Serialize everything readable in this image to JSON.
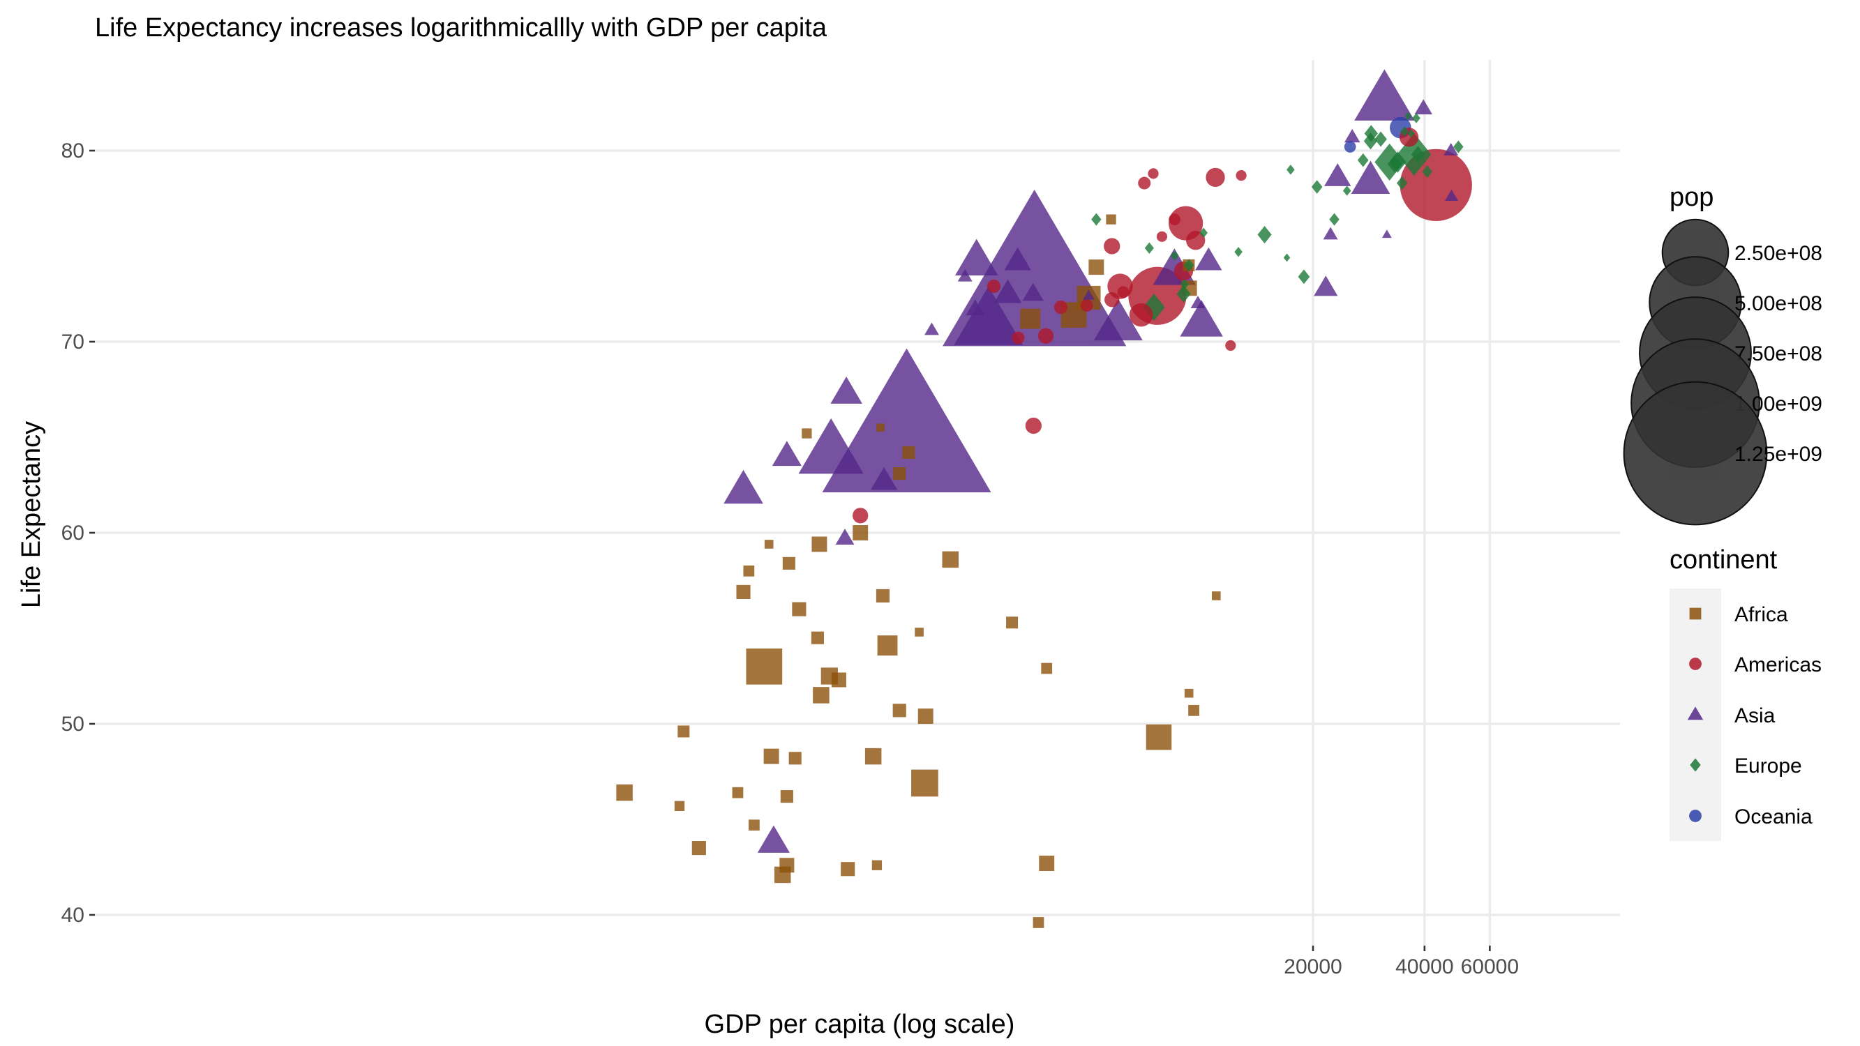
{
  "chart_data": {
    "type": "scatter",
    "title": "Life Expectancy increases logarithmicallly with GDP per capita",
    "xlabel": "GDP per capita (log scale)",
    "ylabel": "Life Expectancy",
    "x_scale": "log10",
    "x_ticks": [
      20000,
      40000,
      60000
    ],
    "x_tick_labels": [
      "20000",
      "40000",
      "60000"
    ],
    "y_ticks": [
      40,
      50,
      60,
      70,
      80
    ],
    "y_tick_labels": [
      "40",
      "50",
      "60",
      "70",
      "80"
    ],
    "xlim": [
      250,
      60000
    ],
    "ylim": [
      37.5,
      85
    ],
    "grid": true,
    "legends": {
      "pop": {
        "title": "pop",
        "values": [
          250000000,
          500000000,
          750000000,
          1000000000,
          1250000000
        ],
        "labels": [
          "2.50e+08",
          "5.00e+08",
          "7.50e+08",
          "1.00e+09",
          "1.25e+09"
        ]
      },
      "continent": {
        "title": "continent",
        "items": [
          {
            "name": "Africa",
            "color": "#8c510a",
            "shape": "square"
          },
          {
            "name": "Americas",
            "color": "#b2182b",
            "shape": "circle"
          },
          {
            "name": "Asia",
            "color": "#542788",
            "shape": "triangle"
          },
          {
            "name": "Europe",
            "color": "#1b7837",
            "shape": "diamond"
          },
          {
            "name": "Oceania",
            "color": "#2c3fa8",
            "shape": "circle"
          }
        ]
      }
    },
    "point_alpha": 0.8,
    "series": [
      {
        "name": "Africa",
        "points": [
          [
            277,
            46.4,
            12000000
          ],
          [
            400,
            49.6,
            5000000
          ],
          [
            390,
            45.7,
            3000000
          ],
          [
            440,
            43.5,
            8000000
          ],
          [
            560,
            46.4,
            4000000
          ],
          [
            620,
            44.7,
            4000000
          ],
          [
            580,
            56.9,
            8000000
          ],
          [
            600,
            58.0,
            4000000
          ],
          [
            660,
            53.0,
            77000000
          ],
          [
            680,
            59.4,
            2000000
          ],
          [
            690,
            48.3,
            10000000
          ],
          [
            740,
            42.1,
            12000000
          ],
          [
            760,
            42.6,
            9000000
          ],
          [
            770,
            58.4,
            6000000
          ],
          [
            760,
            46.2,
            6000000
          ],
          [
            800,
            48.2,
            6000000
          ],
          [
            820,
            56.0,
            8000000
          ],
          [
            860,
            65.2,
            3000000
          ],
          [
            920,
            54.5,
            6000000
          ],
          [
            930,
            59.4,
            10000000
          ],
          [
            940,
            51.5,
            12000000
          ],
          [
            990,
            52.5,
            13000000
          ],
          [
            1050,
            52.3,
            9000000
          ],
          [
            1110,
            42.4,
            8000000
          ],
          [
            1200,
            60.0,
            10000000
          ],
          [
            1300,
            48.3,
            12000000
          ],
          [
            1330,
            42.6,
            3000000
          ],
          [
            1360,
            65.5,
            1500000
          ],
          [
            1380,
            56.7,
            7000000
          ],
          [
            1420,
            54.1,
            20000000
          ],
          [
            1530,
            63.1,
            6000000
          ],
          [
            1530,
            50.7,
            7000000
          ],
          [
            1620,
            64.2,
            6000000
          ],
          [
            1730,
            54.8,
            2000000
          ],
          [
            1790,
            46.9,
            40000000
          ],
          [
            1800,
            50.4,
            10000000
          ],
          [
            2100,
            58.6,
            12000000
          ],
          [
            3080,
            55.3,
            5000000
          ],
          [
            3450,
            71.2,
            20000000
          ],
          [
            3630,
            39.6,
            4000000
          ],
          [
            3820,
            52.9,
            4000000
          ],
          [
            3820,
            42.7,
            10000000
          ],
          [
            4520,
            71.4,
            35000000
          ],
          [
            4960,
            72.3,
            30000000
          ],
          [
            5200,
            73.9,
            10000000
          ],
          [
            5700,
            76.4,
            3000000
          ],
          [
            7670,
            49.3,
            35000000
          ],
          [
            9270,
            72.8,
            10000000
          ],
          [
            9250,
            51.6,
            2000000
          ],
          [
            9530,
            50.7,
            4000000
          ],
          [
            10960,
            56.7,
            2000000
          ],
          [
            9240,
            74.0,
            5000000
          ]
        ]
      },
      {
        "name": "Americas",
        "points": [
          [
            2750,
            72.9,
            6000000
          ],
          [
            3200,
            70.2,
            5000000
          ],
          [
            3520,
            65.6,
            10000000
          ],
          [
            1200,
            60.9,
            9000000
          ],
          [
            4170,
            71.8,
            6000000
          ],
          [
            3800,
            70.3,
            9000000
          ],
          [
            5730,
            72.2,
            8000000
          ],
          [
            6030,
            72.9,
            30000000
          ],
          [
            5730,
            75.0,
            10000000
          ],
          [
            6150,
            72.6,
            4000000
          ],
          [
            6870,
            71.4,
            25000000
          ],
          [
            7010,
            78.3,
            5000000
          ],
          [
            7410,
            78.8,
            3000000
          ],
          [
            7820,
            75.5,
            3000000
          ],
          [
            7600,
            72.4,
            190000000
          ],
          [
            8460,
            76.4,
            4000000
          ],
          [
            8950,
            73.7,
            15000000
          ],
          [
            9070,
            76.2,
            60000000
          ],
          [
            9640,
            75.3,
            15000000
          ],
          [
            10900,
            78.6,
            15000000
          ],
          [
            12800,
            78.7,
            3000000
          ],
          [
            11980,
            69.8,
            3000000
          ],
          [
            36320,
            80.7,
            15000000
          ],
          [
            42950,
            78.2,
            301000000
          ],
          [
            4900,
            71.9,
            5000000
          ]
        ]
      },
      {
        "name": "Asia",
        "points": [
          [
            700,
            43.8,
            31000000
          ],
          [
            580,
            62.2,
            50000000
          ],
          [
            760,
            64.0,
            25000000
          ],
          [
            1000,
            64.2,
            150000000
          ],
          [
            1100,
            67.3,
            30000000
          ],
          [
            1090,
            59.7,
            8000000
          ],
          [
            1390,
            62.7,
            20000000
          ],
          [
            1600,
            65.0,
            1110000000
          ],
          [
            1870,
            70.6,
            4000000
          ],
          [
            2300,
            73.4,
            4000000
          ],
          [
            2450,
            71.7,
            8000000
          ],
          [
            2470,
            74.2,
            60000000
          ],
          [
            2660,
            71.0,
            170000000
          ],
          [
            3000,
            72.5,
            22000000
          ],
          [
            3190,
            74.2,
            20000000
          ],
          [
            3510,
            72.5,
            11000000
          ],
          [
            3540,
            72.9,
            1320000000
          ],
          [
            4960,
            72.4,
            2000000
          ],
          [
            5960,
            70.9,
            80000000
          ],
          [
            8450,
            73.7,
            60000000
          ],
          [
            9780,
            72.0,
            4000000
          ],
          [
            10450,
            74.2,
            20000000
          ],
          [
            10000,
            71.0,
            60000000
          ],
          [
            21650,
            72.8,
            15000000
          ],
          [
            22300,
            75.6,
            4000000
          ],
          [
            23300,
            78.6,
            20000000
          ],
          [
            25520,
            80.7,
            5000000
          ],
          [
            28600,
            78.4,
            48000000
          ],
          [
            31650,
            75.6,
            1000000
          ],
          [
            39720,
            82.2,
            7000000
          ],
          [
            31180,
            82.6,
            127000000
          ],
          [
            47140,
            80.0,
            4000000
          ],
          [
            47300,
            77.6,
            3000000
          ]
        ]
      },
      {
        "name": "Europe",
        "points": [
          [
            5200,
            76.4,
            4000000
          ],
          [
            7230,
            74.9,
            3000000
          ],
          [
            7440,
            71.8,
            30000000
          ],
          [
            8460,
            74.5,
            2000000
          ],
          [
            9250,
            74.0,
            4000000
          ],
          [
            9000,
            73.0,
            2000000
          ],
          [
            10130,
            75.7,
            2000000
          ],
          [
            8950,
            72.5,
            10000000
          ],
          [
            14800,
            75.6,
            10000000
          ],
          [
            12580,
            74.7,
            2000000
          ],
          [
            17000,
            74.4,
            1000000
          ],
          [
            18900,
            73.4,
            6000000
          ],
          [
            20500,
            78.1,
            5000000
          ],
          [
            22830,
            76.4,
            4000000
          ],
          [
            24700,
            77.9,
            2000000
          ],
          [
            27300,
            79.5,
            5000000
          ],
          [
            28600,
            80.5,
            9000000
          ],
          [
            28700,
            80.9,
            9000000
          ],
          [
            30470,
            80.6,
            7000000
          ],
          [
            32170,
            79.4,
            60000000
          ],
          [
            33200,
            79.3,
            10000000
          ],
          [
            33860,
            79.4,
            16000000
          ],
          [
            35280,
            81.0,
            2000000
          ],
          [
            34800,
            78.3,
            5000000
          ],
          [
            36800,
            80.9,
            1000000
          ],
          [
            37500,
            79.8,
            82000000
          ],
          [
            36130,
            81.8,
            1000000
          ],
          [
            38000,
            81.7,
            2000000
          ],
          [
            40680,
            78.9,
            4000000
          ],
          [
            49360,
            80.2,
            4000000
          ],
          [
            38400,
            79.8,
            9000000
          ],
          [
            17400,
            79.0,
            2000000
          ]
        ]
      },
      {
        "name": "Oceania",
        "points": [
          [
            25185,
            80.2,
            4000000
          ],
          [
            34435,
            81.2,
            20000000
          ]
        ]
      }
    ]
  }
}
